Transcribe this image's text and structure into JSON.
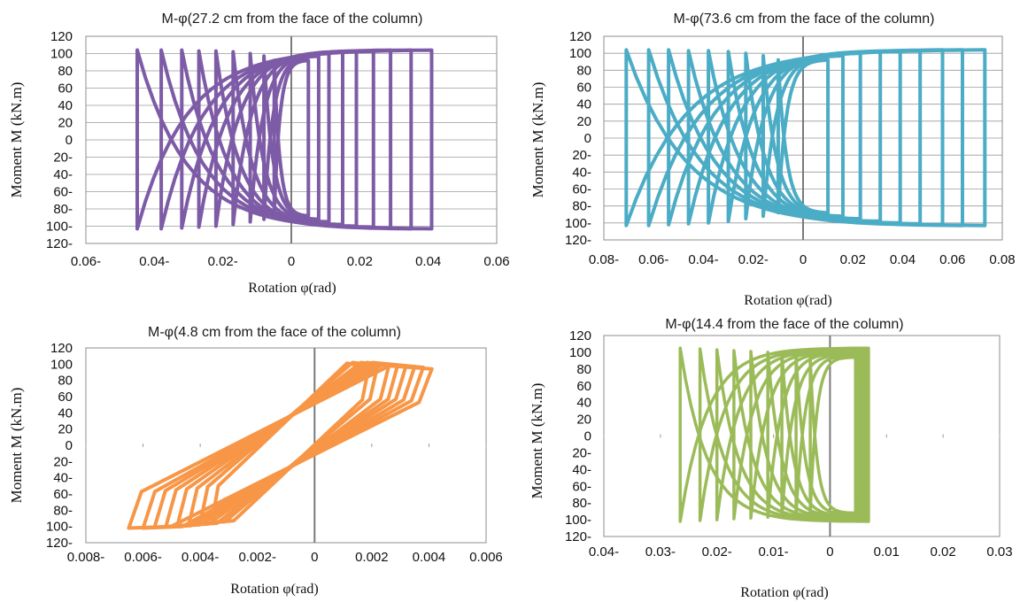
{
  "chart_data": [
    {
      "type": "line",
      "title": "M-φ(27.2 cm from the face of the column)",
      "xlabel": "Rotation φ(rad)",
      "ylabel": "Moment M (kN.m)",
      "xlim": [
        -0.06,
        0.06
      ],
      "ylim": [
        -120,
        120
      ],
      "x_ticks": [
        "0.06-",
        "0.04-",
        "0.02-",
        "0",
        "0.02",
        "0.04",
        "0.06"
      ],
      "y_ticks": [
        "120",
        "100",
        "80",
        "60",
        "40",
        "20",
        "0",
        "20-",
        "40-",
        "60-",
        "80-",
        "100-",
        "120-"
      ],
      "color": "#7d5ba6",
      "grid": true,
      "loops": [
        {
          "r": [
            -0.045,
            0.041
          ],
          "m": [
            -103,
            104
          ]
        },
        {
          "r": [
            -0.038,
            0.035
          ],
          "m": [
            -103,
            104
          ]
        },
        {
          "r": [
            -0.032,
            0.029
          ],
          "m": [
            -102,
            104
          ]
        },
        {
          "r": [
            -0.027,
            0.024
          ],
          "m": [
            -101,
            103
          ]
        },
        {
          "r": [
            -0.022,
            0.019
          ],
          "m": [
            -100,
            103
          ]
        },
        {
          "r": [
            -0.017,
            0.015
          ],
          "m": [
            -98,
            102
          ]
        },
        {
          "r": [
            -0.012,
            0.011
          ],
          "m": [
            -95,
            100
          ]
        },
        {
          "r": [
            -0.008,
            0.008
          ],
          "m": [
            -92,
            97
          ]
        },
        {
          "r": [
            -0.005,
            0.005
          ],
          "m": [
            -88,
            92
          ]
        }
      ]
    },
    {
      "type": "line",
      "title": "M-φ(73.6 cm from the face of the column)",
      "xlabel": "Rotation φ(rad)",
      "ylabel": "Moment M (kN.m)",
      "xlim": [
        -0.08,
        0.08
      ],
      "ylim": [
        -120,
        120
      ],
      "x_ticks": [
        "0.08-",
        "0.06-",
        "0.04-",
        "0.02-",
        "0",
        "0.02",
        "0.04",
        "0.06",
        "0.08"
      ],
      "y_ticks": [
        "120",
        "100",
        "80",
        "60",
        "40",
        "20",
        "0",
        "20-",
        "40-",
        "60-",
        "80-",
        "100-",
        "120-"
      ],
      "color": "#4bacc6",
      "grid": true,
      "loops": [
        {
          "r": [
            -0.071,
            0.073
          ],
          "m": [
            -103,
            104
          ]
        },
        {
          "r": [
            -0.062,
            0.064
          ],
          "m": [
            -103,
            104
          ]
        },
        {
          "r": [
            -0.054,
            0.056
          ],
          "m": [
            -102,
            104
          ]
        },
        {
          "r": [
            -0.046,
            0.047
          ],
          "m": [
            -101,
            103
          ]
        },
        {
          "r": [
            -0.038,
            0.039
          ],
          "m": [
            -100,
            103
          ]
        },
        {
          "r": [
            -0.03,
            0.031
          ],
          "m": [
            -98,
            102
          ]
        },
        {
          "r": [
            -0.023,
            0.023
          ],
          "m": [
            -95,
            100
          ]
        },
        {
          "r": [
            -0.016,
            0.016
          ],
          "m": [
            -92,
            97
          ]
        },
        {
          "r": [
            -0.01,
            0.01
          ],
          "m": [
            -88,
            92
          ]
        }
      ]
    },
    {
      "type": "line",
      "title": "M-φ(4.8 cm from the face of the column)",
      "xlabel": "Rotation φ(rad)",
      "ylabel": "Moment M (kN.m)",
      "xlim": [
        -0.008,
        0.006
      ],
      "ylim": [
        -120,
        120
      ],
      "x_ticks": [
        "0.008-",
        "0.006-",
        "0.004-",
        "0.002-",
        "0",
        "0.002",
        "0.004",
        "0.006"
      ],
      "y_ticks": [
        "120",
        "100",
        "80",
        "60",
        "40",
        "20",
        "0",
        "20-",
        "40-",
        "60-",
        "80-",
        "100-",
        "120-"
      ],
      "color": "#f79646",
      "grid": false,
      "loops": [
        {
          "r": [
            -0.0065,
            0.0041
          ],
          "m": [
            -102,
            98
          ]
        },
        {
          "r": [
            -0.006,
            0.0038
          ],
          "m": [
            -102,
            100
          ]
        },
        {
          "r": [
            -0.0056,
            0.0035
          ],
          "m": [
            -101,
            101
          ]
        },
        {
          "r": [
            -0.0052,
            0.0032
          ],
          "m": [
            -100,
            102
          ]
        },
        {
          "r": [
            -0.0048,
            0.0029
          ],
          "m": [
            -99,
            102
          ]
        },
        {
          "r": [
            -0.0044,
            0.0026
          ],
          "m": [
            -98,
            102
          ]
        },
        {
          "r": [
            -0.004,
            0.0022
          ],
          "m": [
            -96,
            102
          ]
        },
        {
          "r": [
            -0.0036,
            0.0019
          ],
          "m": [
            -95,
            101
          ]
        }
      ]
    },
    {
      "type": "line",
      "title": "M-φ(14.4 from the face of the column)",
      "xlabel": "Rotation φ(rad)",
      "ylabel": "Moment M (kN.m)",
      "xlim": [
        -0.04,
        0.03
      ],
      "ylim": [
        -120,
        120
      ],
      "x_ticks": [
        "0.04-",
        "0.03-",
        "0.02-",
        "0.01-",
        "0",
        "0.01",
        "0.02",
        "0.03"
      ],
      "y_ticks": [
        "120",
        "100",
        "80",
        "60",
        "40",
        "20",
        "0",
        "20-",
        "40-",
        "60-",
        "80-",
        "100-",
        "120-"
      ],
      "color": "#9bbb59",
      "grid": false,
      "loops": [
        {
          "r": [
            -0.0265,
            0.0068
          ],
          "m": [
            -102,
            105
          ]
        },
        {
          "r": [
            -0.023,
            0.0066
          ],
          "m": [
            -101,
            104
          ]
        },
        {
          "r": [
            -0.02,
            0.0064
          ],
          "m": [
            -100,
            103
          ]
        },
        {
          "r": [
            -0.017,
            0.0062
          ],
          "m": [
            -99,
            102
          ]
        },
        {
          "r": [
            -0.014,
            0.006
          ],
          "m": [
            -98,
            101
          ]
        },
        {
          "r": [
            -0.011,
            0.0057
          ],
          "m": [
            -97,
            100
          ]
        },
        {
          "r": [
            -0.0085,
            0.0054
          ],
          "m": [
            -96,
            98
          ]
        },
        {
          "r": [
            -0.006,
            0.005
          ],
          "m": [
            -94,
            96
          ]
        },
        {
          "r": [
            -0.0035,
            0.0045
          ],
          "m": [
            -92,
            94
          ]
        }
      ]
    }
  ]
}
